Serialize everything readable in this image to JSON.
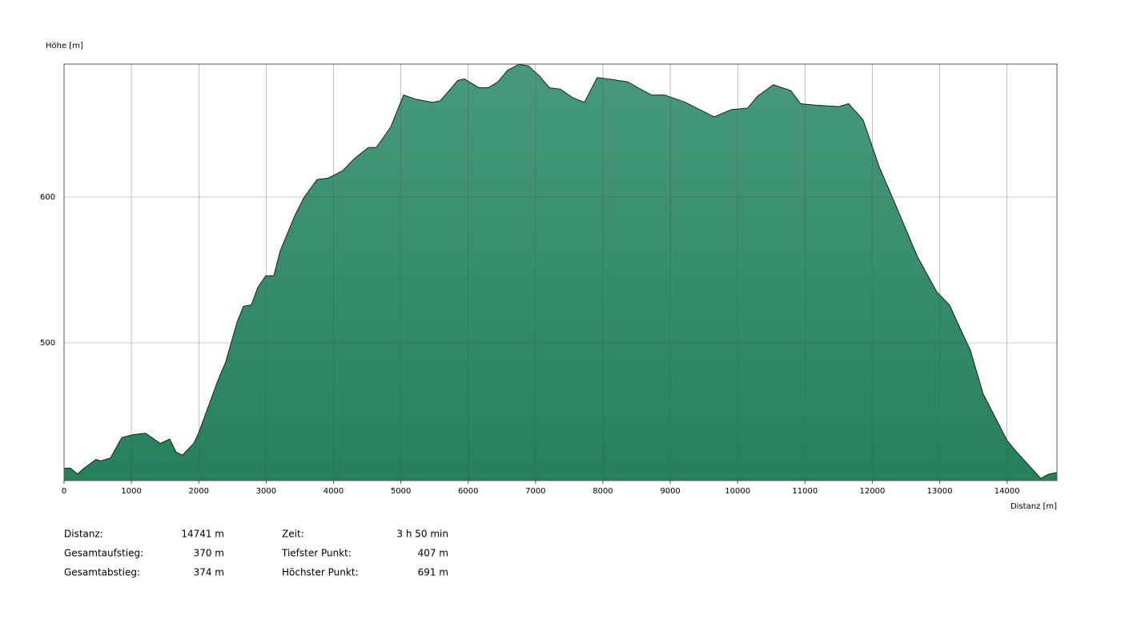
{
  "chart_data": {
    "type": "area",
    "y_label": "Höhe [m]",
    "x_label": "Distanz [m]",
    "color": "#1f1f1f",
    "gradient": [
      "#48997c",
      "#26805a"
    ],
    "grid": true,
    "xlim": [
      0,
      14741
    ],
    "ylim": [
      405.5,
      691.2
    ],
    "xticks": [
      0,
      1000,
      2000,
      3000,
      4000,
      5000,
      6000,
      7000,
      8000,
      9000,
      10000,
      11000,
      12000,
      13000,
      14000
    ],
    "yticks": [
      500,
      600
    ],
    "x": [
      0,
      95,
      200,
      297,
      475,
      547,
      690,
      856,
      1022,
      1212,
      1426,
      1569,
      1664,
      1759,
      1925,
      1997,
      2163,
      2282,
      2401,
      2567,
      2662,
      2781,
      2876,
      2995,
      3114,
      3209,
      3423,
      3566,
      3756,
      3922,
      4136,
      4303,
      4517,
      4636,
      4850,
      5040,
      5230,
      5468,
      5586,
      5848,
      5943,
      6157,
      6300,
      6442,
      6585,
      6751,
      6894,
      7060,
      7203,
      7369,
      7559,
      7726,
      7916,
      8082,
      8368,
      8558,
      8724,
      8914,
      9223,
      9437,
      9651,
      9912,
      10150,
      10293,
      10531,
      10792,
      10934,
      11172,
      11505,
      11648,
      11862,
      12005,
      12100,
      12314,
      12671,
      12956,
      13146,
      13313,
      13455,
      13646,
      14002,
      14145,
      14501,
      14620,
      14741
    ],
    "values": [
      414,
      414,
      410,
      414,
      420,
      419,
      421,
      435,
      437,
      438,
      431,
      434,
      425,
      423,
      431,
      438,
      459,
      474,
      487,
      514,
      525,
      526,
      538,
      546,
      546,
      563,
      587,
      600,
      612,
      613,
      618,
      626,
      634,
      634,
      648,
      670,
      667,
      665,
      666,
      680,
      681,
      675,
      675,
      679,
      687,
      691,
      690,
      683,
      675,
      674,
      668,
      665,
      682,
      681,
      679,
      674,
      670,
      670,
      665,
      660,
      655,
      660,
      661,
      669,
      677,
      673,
      664,
      663,
      662,
      664,
      653,
      634,
      621,
      598,
      559,
      535,
      526,
      509,
      495,
      465,
      433,
      425,
      407,
      410,
      411
    ]
  },
  "stats": [
    [
      {
        "label": "Distanz:",
        "value": "14741 m"
      },
      {
        "label": "Zeit:",
        "value": "3 h 50 min"
      }
    ],
    [
      {
        "label": "Gesamtaufstieg:",
        "value": "370 m"
      },
      {
        "label": "Tiefster Punkt:",
        "value": "407 m"
      }
    ],
    [
      {
        "label": "Gesamtabstieg:",
        "value": "374 m"
      },
      {
        "label": "Höchster Punkt:",
        "value": "691 m"
      }
    ]
  ]
}
